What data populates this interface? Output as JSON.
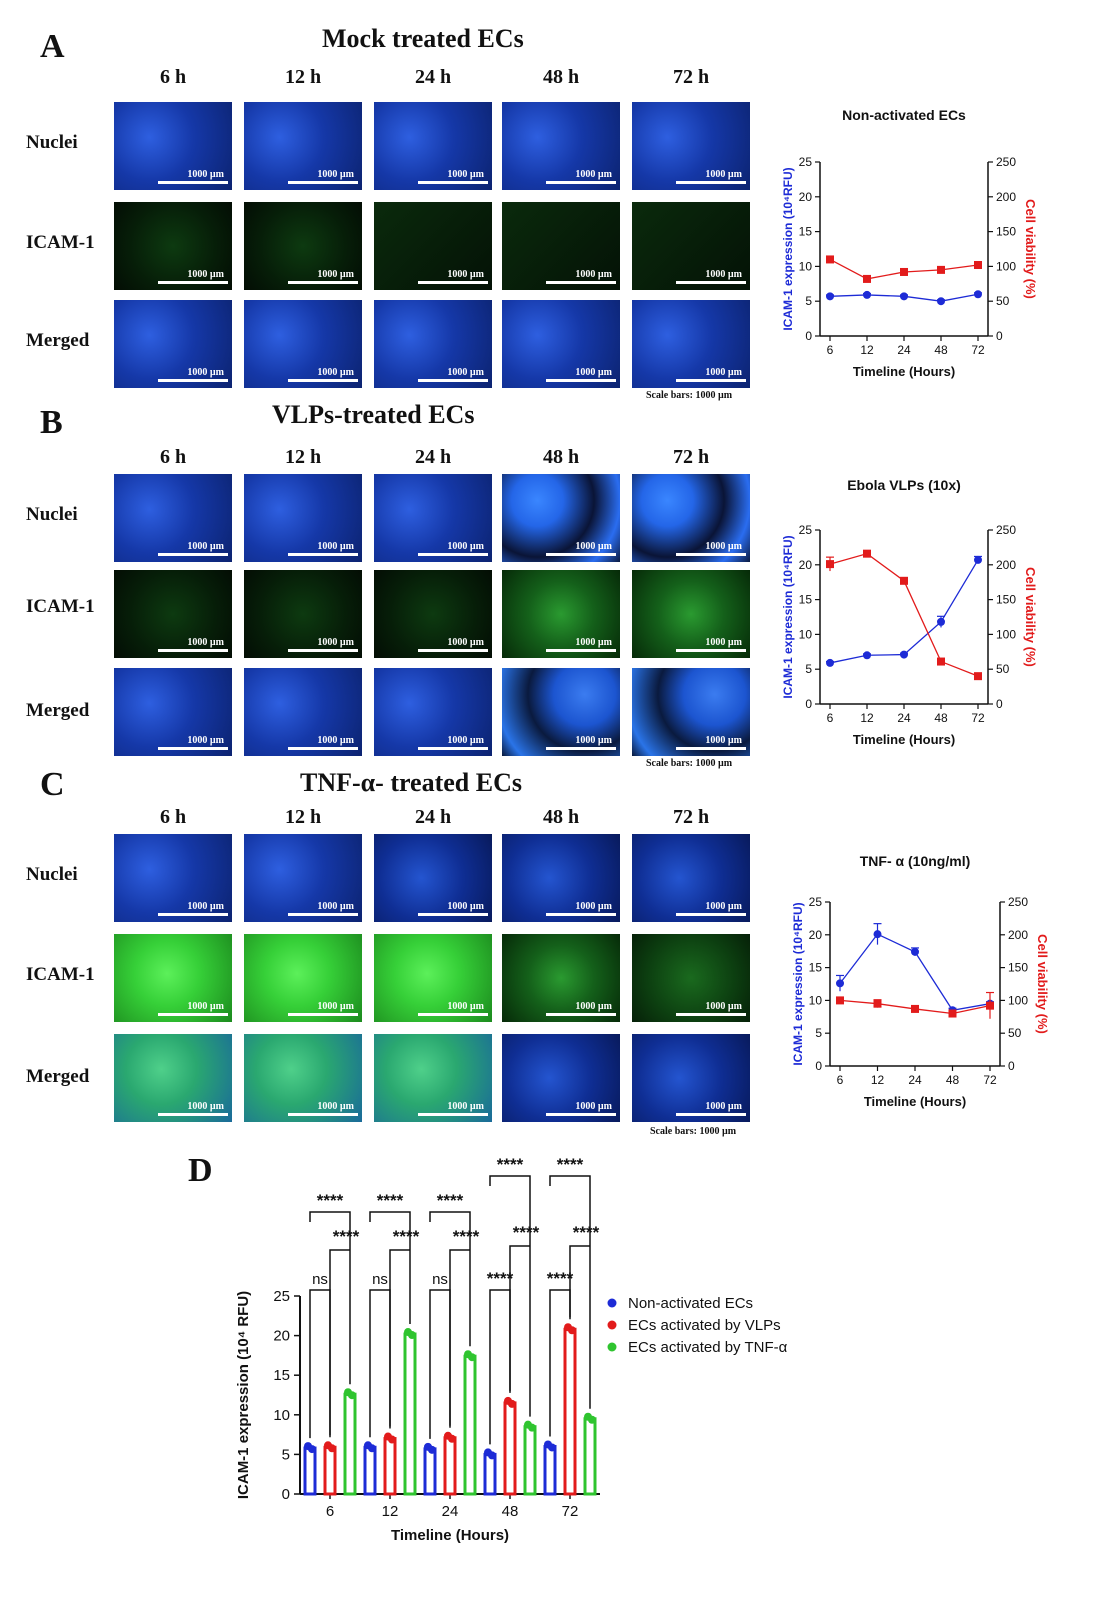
{
  "panels": [
    {
      "letter": "A",
      "title": "Mock treated ECs",
      "times": [
        "6 h",
        "12 h",
        "24 h",
        "48 h",
        "72 h"
      ],
      "rows": [
        {
          "label": "Nuclei",
          "images": [
            "nuclei",
            "nuclei",
            "nuclei",
            "nuclei",
            "nuclei"
          ]
        },
        {
          "label": "ICAM-1",
          "images": [
            "icam-weak",
            "icam-weak",
            "icam-none",
            "icam-none",
            "icam-none"
          ]
        },
        {
          "label": "Merged",
          "images": [
            "nuclei",
            "nuclei",
            "nuclei",
            "nuclei",
            "nuclei"
          ]
        }
      ],
      "scale_label": "1000 µm",
      "scale_note": "Scale bars: 1000 µm"
    },
    {
      "letter": "B",
      "title": "VLPs-treated ECs",
      "times": [
        "6 h",
        "12 h",
        "24 h",
        "48 h",
        "72 h"
      ],
      "rows": [
        {
          "label": "Nuclei",
          "images": [
            "nuclei",
            "nuclei",
            "nuclei",
            "nuclei-patchy",
            "nuclei-patchy"
          ]
        },
        {
          "label": "ICAM-1",
          "images": [
            "icam-weak",
            "icam-weak",
            "icam-weak",
            "icam-medium",
            "icam-medium"
          ]
        },
        {
          "label": "Merged",
          "images": [
            "nuclei",
            "nuclei",
            "nuclei",
            "merged-patchy",
            "merged-patchy"
          ]
        }
      ],
      "scale_label": "1000 µm",
      "scale_note": "Scale bars: 1000 µm"
    },
    {
      "letter": "C",
      "title": "TNF-α- treated ECs",
      "times": [
        "6 h",
        "12 h",
        "24 h",
        "48 h",
        "72 h"
      ],
      "rows": [
        {
          "label": "Nuclei",
          "images": [
            "nuclei",
            "nuclei",
            "nuclei-sparse",
            "nuclei-sparse",
            "nuclei-sparse"
          ]
        },
        {
          "label": "ICAM-1",
          "images": [
            "icam-strong",
            "icam-strong",
            "icam-strong",
            "icam-medium",
            "icam-low"
          ]
        },
        {
          "label": "Merged",
          "images": [
            "merged-strong",
            "merged-strong",
            "merged-strong",
            "nuclei-sparse",
            "nuclei-sparse"
          ]
        }
      ],
      "scale_label": "1000 µm",
      "scale_note": "Scale bars: 1000 µm"
    }
  ],
  "panel_d_letter": "D",
  "colors": {
    "blue": "#1d2bd6",
    "red": "#e21b1b",
    "green": "#2fc42f"
  },
  "chart_data": [
    {
      "type": "line",
      "title": "Non-activated ECs",
      "categories": [
        "6",
        "12",
        "24",
        "48",
        "72"
      ],
      "xlabel": "Timeline (Hours)",
      "ylabel_left": "ICAM-1 expression (10⁴RFU)",
      "ylabel_right": "Cell viability (%)",
      "ylim_left": [
        0,
        25
      ],
      "ylim_right": [
        0,
        250
      ],
      "yticks_left": [
        "0",
        "5",
        "10",
        "15",
        "20",
        "25"
      ],
      "yticks_right": [
        "0",
        "50",
        "100",
        "150",
        "200",
        "250"
      ],
      "series": [
        {
          "axis": "left",
          "color": "#1d2bd6",
          "marker": "circle",
          "values": [
            5.7,
            5.9,
            5.7,
            5.0,
            6.0
          ],
          "errors": [
            0.2,
            0.2,
            0.2,
            0.2,
            0.2
          ]
        },
        {
          "axis": "right",
          "color": "#e21b1b",
          "marker": "square",
          "values": [
            110,
            82,
            92,
            95,
            102
          ],
          "errors": [
            3,
            3,
            3,
            3,
            3
          ]
        }
      ]
    },
    {
      "type": "line",
      "title": "Ebola VLPs (10x)",
      "categories": [
        "6",
        "12",
        "24",
        "48",
        "72"
      ],
      "xlabel": "Timeline (Hours)",
      "ylabel_left": "ICAM-1 expression (10⁴RFU)",
      "ylabel_right": "Cell viability (%)",
      "ylim_left": [
        0,
        25
      ],
      "ylim_right": [
        0,
        250
      ],
      "yticks_left": [
        "0",
        "5",
        "10",
        "15",
        "20",
        "25"
      ],
      "yticks_right": [
        "0",
        "50",
        "100",
        "150",
        "200",
        "250"
      ],
      "series": [
        {
          "axis": "left",
          "color": "#1d2bd6",
          "marker": "circle",
          "values": [
            5.9,
            7.0,
            7.1,
            11.8,
            20.7
          ],
          "errors": [
            0.2,
            0.2,
            0.2,
            0.8,
            0.5
          ]
        },
        {
          "axis": "right",
          "color": "#e21b1b",
          "marker": "square",
          "values": [
            201,
            216,
            177,
            61,
            40
          ],
          "errors": [
            10,
            3,
            3,
            3,
            3
          ]
        }
      ]
    },
    {
      "type": "line",
      "title": "TNF- α (10ng/ml)",
      "categories": [
        "6",
        "12",
        "24",
        "48",
        "72"
      ],
      "xlabel": "Timeline (Hours)",
      "ylabel_left": "ICAM-1 expression (10⁴RFU)",
      "ylabel_right": "Cell viability (%)",
      "ylim_left": [
        0,
        25
      ],
      "ylim_right": [
        0,
        250
      ],
      "yticks_left": [
        "0",
        "5",
        "10",
        "15",
        "20",
        "25"
      ],
      "yticks_right": [
        "0",
        "50",
        "100",
        "150",
        "200",
        "250"
      ],
      "series": [
        {
          "axis": "left",
          "color": "#1d2bd6",
          "marker": "circle",
          "values": [
            12.6,
            20.1,
            17.4,
            8.5,
            9.5
          ],
          "errors": [
            1.2,
            1.6,
            0.6,
            0.3,
            0.3
          ]
        },
        {
          "axis": "right",
          "color": "#e21b1b",
          "marker": "square",
          "values": [
            100,
            95,
            87,
            80,
            92
          ],
          "errors": [
            3,
            6,
            3,
            3,
            20
          ]
        }
      ]
    },
    {
      "type": "bar",
      "categories": [
        "6",
        "12",
        "24",
        "48",
        "72"
      ],
      "xlabel": "Timeline (Hours)",
      "ylabel": "ICAM-1 expression (10⁴ RFU)",
      "ylim": [
        0,
        25
      ],
      "yticks": [
        "0",
        "5",
        "10",
        "15",
        "20",
        "25"
      ],
      "series": [
        {
          "name": "Non-activated ECs",
          "color": "#1d2bd6",
          "values": [
            5.8,
            5.9,
            5.7,
            5.0,
            6.0
          ]
        },
        {
          "name": "ECs activated by VLPs",
          "color": "#e21b1b",
          "values": [
            5.9,
            7.0,
            7.1,
            11.5,
            20.8
          ]
        },
        {
          "name": "ECs activated by TNF-α",
          "color": "#2fc42f",
          "values": [
            12.6,
            20.2,
            17.4,
            8.5,
            9.5
          ]
        }
      ],
      "significance": [
        {
          "group": "6",
          "labels": [
            "****",
            "****",
            "ns"
          ]
        },
        {
          "group": "12",
          "labels": [
            "****",
            "****",
            "ns"
          ]
        },
        {
          "group": "24",
          "labels": [
            "****",
            "****",
            "ns"
          ]
        },
        {
          "group": "48",
          "labels": [
            "****",
            "****",
            "****"
          ]
        },
        {
          "group": "72",
          "labels": [
            "****",
            "****",
            "****"
          ]
        }
      ]
    }
  ]
}
